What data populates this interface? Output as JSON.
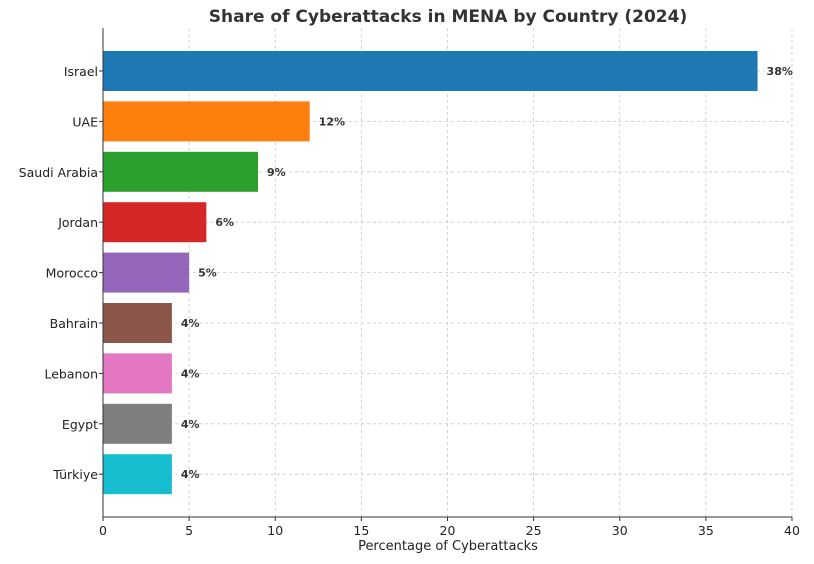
{
  "chart_data": {
    "type": "bar",
    "orientation": "horizontal",
    "title": "Share of Cyberattacks in MENA by Country (2024)",
    "xlabel": "Percentage of Cyberattacks",
    "ylabel": "",
    "xlim": [
      0,
      40
    ],
    "xticks": [
      0,
      5,
      10,
      15,
      20,
      25,
      30,
      35,
      40
    ],
    "grid": true,
    "categories": [
      "Israel",
      "UAE",
      "Saudi Arabia",
      "Jordan",
      "Morocco",
      "Bahrain",
      "Lebanon",
      "Egypt",
      "Türkiye"
    ],
    "values": [
      38,
      12,
      9,
      6,
      5,
      4,
      4,
      4,
      4
    ],
    "data_labels": [
      "38%",
      "12%",
      "9%",
      "6%",
      "5%",
      "4%",
      "4%",
      "4%",
      "4%"
    ],
    "colors": [
      "#1f77b4",
      "#ff7f0e",
      "#2ca02c",
      "#d62728",
      "#9467bd",
      "#8c564b",
      "#e377c2",
      "#7f7f7f",
      "#17becf"
    ]
  }
}
